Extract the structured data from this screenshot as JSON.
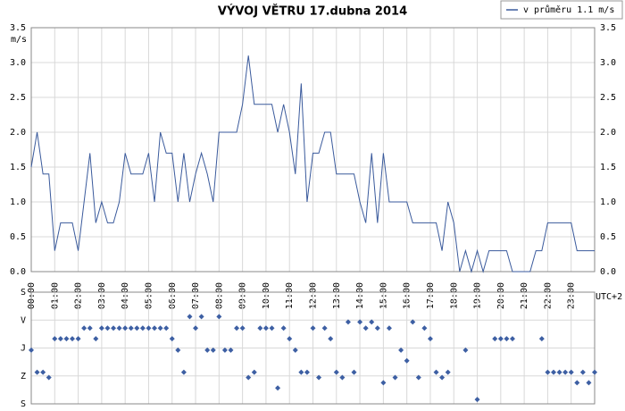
{
  "chart_data": [
    {
      "type": "line",
      "title": "VÝVOJ VĚTRU  17.dubna 2014",
      "y_label": "m/s",
      "x_label": "UTC+2",
      "x": [
        0,
        15,
        30,
        45,
        60,
        75,
        105,
        120,
        150,
        165,
        180,
        195,
        210,
        225,
        240,
        255,
        285,
        300,
        315,
        330,
        345,
        360,
        375,
        390,
        405,
        420,
        435,
        450,
        465,
        480,
        525,
        540,
        555,
        570,
        615,
        630,
        645,
        660,
        675,
        690,
        705,
        720,
        735,
        750,
        765,
        780,
        825,
        840,
        855,
        870,
        885,
        900,
        915,
        960,
        975,
        1035,
        1050,
        1065,
        1080,
        1095,
        1110,
        1125,
        1140,
        1155,
        1170,
        1215,
        1230,
        1275,
        1290,
        1305,
        1320,
        1380,
        1395,
        1440
      ],
      "series": [
        {
          "name": "v průměru 1.1 m/s",
          "color": "#3a5a9c",
          "values": [
            1.5,
            2.0,
            1.4,
            1.4,
            0.3,
            0.7,
            0.7,
            0.3,
            1.7,
            0.7,
            1.0,
            0.7,
            0.7,
            1.0,
            1.7,
            1.4,
            1.4,
            1.7,
            1.0,
            2.0,
            1.7,
            1.7,
            1.0,
            1.7,
            1.0,
            1.4,
            1.7,
            1.4,
            1.0,
            2.0,
            2.0,
            2.4,
            3.1,
            2.4,
            2.4,
            2.0,
            2.4,
            2.0,
            1.4,
            2.7,
            1.0,
            1.7,
            1.7,
            2.0,
            2.0,
            1.4,
            1.4,
            1.0,
            0.7,
            1.7,
            0.7,
            1.7,
            1.0,
            1.0,
            0.7,
            0.7,
            0.3,
            1.0,
            0.7,
            0.0,
            0.3,
            0.0,
            0.3,
            0.0,
            0.3,
            0.3,
            0.0,
            0.0,
            0.3,
            0.3,
            0.7,
            0.7,
            0.3,
            0.3
          ]
        }
      ],
      "xlim": [
        0,
        1440
      ],
      "xticks": [
        {
          "value": 0,
          "label": "00:00"
        },
        {
          "value": 60,
          "label": "01:00"
        },
        {
          "value": 120,
          "label": "02:00"
        },
        {
          "value": 180,
          "label": "03:00"
        },
        {
          "value": 240,
          "label": "04:00"
        },
        {
          "value": 300,
          "label": "05:00"
        },
        {
          "value": 360,
          "label": "06:00"
        },
        {
          "value": 420,
          "label": "07:00"
        },
        {
          "value": 480,
          "label": "08:00"
        },
        {
          "value": 540,
          "label": "09:00"
        },
        {
          "value": 600,
          "label": "10:00"
        },
        {
          "value": 660,
          "label": "11:00"
        },
        {
          "value": 720,
          "label": "12:00"
        },
        {
          "value": 780,
          "label": "13:00"
        },
        {
          "value": 840,
          "label": "14:00"
        },
        {
          "value": 900,
          "label": "15:00"
        },
        {
          "value": 960,
          "label": "16:00"
        },
        {
          "value": 1020,
          "label": "17:00"
        },
        {
          "value": 1080,
          "label": "18:00"
        },
        {
          "value": 1140,
          "label": "19:00"
        },
        {
          "value": 1200,
          "label": "20:00"
        },
        {
          "value": 1260,
          "label": "21:00"
        },
        {
          "value": 1320,
          "label": "22:00"
        },
        {
          "value": 1380,
          "label": "23:00"
        }
      ],
      "ylim": [
        0,
        3.5
      ],
      "yticks": [
        {
          "value": 0,
          "label": "0.0"
        },
        0.5,
        {
          "value": 1,
          "label": "1.0"
        },
        1.5,
        {
          "value": 2,
          "label": "2.0"
        },
        2.5,
        {
          "value": 3,
          "label": "3.0"
        },
        3.5
      ],
      "grid": true,
      "legend": "top-right"
    },
    {
      "type": "scatter",
      "color": "#3d5fa3",
      "x": [
        0,
        15,
        30,
        45,
        60,
        75,
        90,
        105,
        120,
        135,
        150,
        165,
        180,
        195,
        210,
        225,
        240,
        255,
        270,
        285,
        300,
        315,
        330,
        345,
        360,
        375,
        390,
        405,
        420,
        435,
        450,
        465,
        480,
        495,
        510,
        525,
        540,
        555,
        570,
        585,
        600,
        615,
        630,
        645,
        660,
        675,
        690,
        705,
        720,
        735,
        750,
        765,
        780,
        795,
        810,
        825,
        840,
        855,
        870,
        885,
        900,
        915,
        930,
        945,
        960,
        975,
        990,
        1005,
        1020,
        1035,
        1050,
        1065,
        1110,
        1140,
        1185,
        1200,
        1215,
        1230,
        1305,
        1320,
        1335,
        1350,
        1365,
        1380,
        1395,
        1410,
        1425,
        1440
      ],
      "values": [
        187,
        258,
        258,
        275,
        150,
        150,
        150,
        150,
        150,
        116,
        116,
        150,
        116,
        116,
        116,
        116,
        116,
        116,
        116,
        116,
        116,
        116,
        116,
        116,
        150,
        187,
        258,
        79,
        116,
        79,
        187,
        187,
        79,
        187,
        187,
        116,
        116,
        275,
        258,
        116,
        116,
        116,
        309,
        116,
        150,
        187,
        258,
        258,
        116,
        275,
        116,
        150,
        258,
        275,
        96,
        258,
        96,
        116,
        96,
        116,
        292,
        116,
        275,
        187,
        221,
        96,
        275,
        116,
        150,
        258,
        275,
        258,
        187,
        346,
        150,
        150,
        150,
        150,
        150,
        258,
        258,
        258,
        258,
        258,
        292,
        258,
        292,
        258
      ],
      "xlim": [
        0,
        1440
      ],
      "ylim": [
        360,
        0
      ],
      "yticks": [
        {
          "value": 0,
          "label": "S"
        },
        {
          "value": 90,
          "label": "V"
        },
        {
          "value": 180,
          "label": "J"
        },
        {
          "value": 270,
          "label": "Z"
        },
        {
          "value": 360,
          "label": "S"
        }
      ],
      "grid": true
    }
  ]
}
